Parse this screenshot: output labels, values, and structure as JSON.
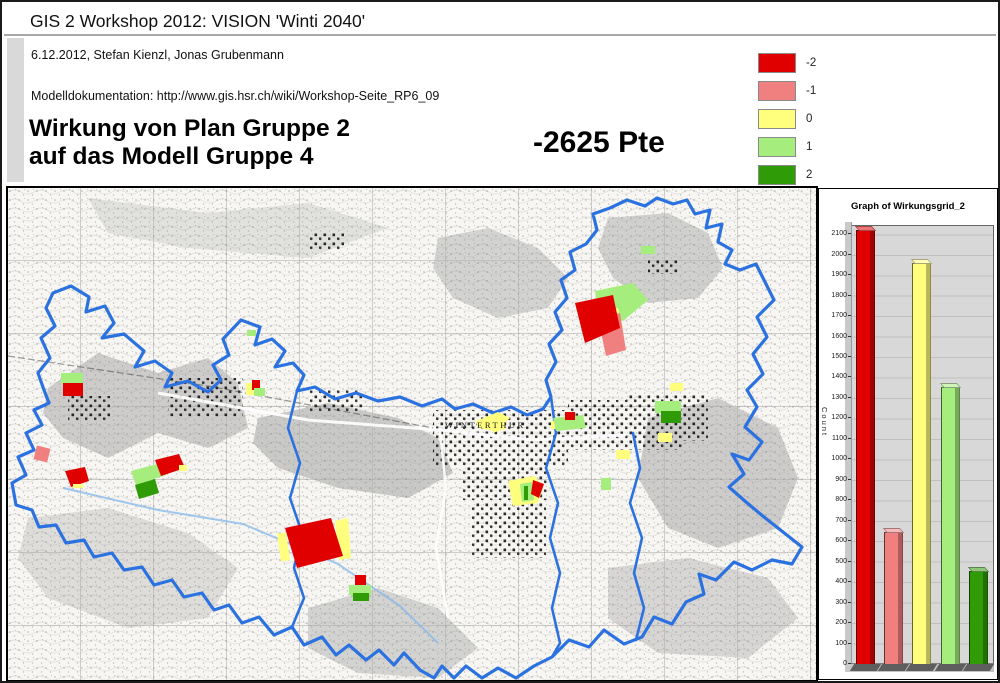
{
  "header": {
    "workshop_title": "GIS 2 Workshop 2012: VISION 'Winti 2040'",
    "authors_line": "6.12.2012, Stefan Kienzl, Jonas Grubenmann",
    "doc_line": "Modelldokumentation: http://www.gis.hsr.ch/wiki/Workshop-Seite_RP6_09",
    "heading_line1": "Wirkung von Plan Gruppe 2",
    "heading_line2": "auf das Modell Gruppe 4",
    "score": "-2625 Pte"
  },
  "legend": {
    "items": [
      {
        "label": "-2",
        "color": "#e00000"
      },
      {
        "label": "-1",
        "color": "#f08080"
      },
      {
        "label": "0",
        "color": "#ffff7d"
      },
      {
        "label": "1",
        "color": "#a5ee7d"
      },
      {
        "label": "2",
        "color": "#2f9b06"
      }
    ]
  },
  "map": {
    "city_label": "WINTERTHUR",
    "boundary_color": "#2b72e0"
  },
  "chart_data": {
    "type": "bar",
    "title": "Graph of Wirkungsgrid_2",
    "ylabel": "Count",
    "categories": [
      "-2",
      "-1",
      "0",
      "1",
      "2"
    ],
    "values": [
      2120,
      645,
      1960,
      1355,
      455
    ],
    "colors": [
      "#e00000",
      "#f08080",
      "#ffff7d",
      "#a5ee7d",
      "#2f9b06"
    ],
    "ylim": [
      0,
      2140
    ],
    "ytick_step": 100,
    "grid": true,
    "legend_position": "none",
    "x_tick_labels_visible": false
  }
}
